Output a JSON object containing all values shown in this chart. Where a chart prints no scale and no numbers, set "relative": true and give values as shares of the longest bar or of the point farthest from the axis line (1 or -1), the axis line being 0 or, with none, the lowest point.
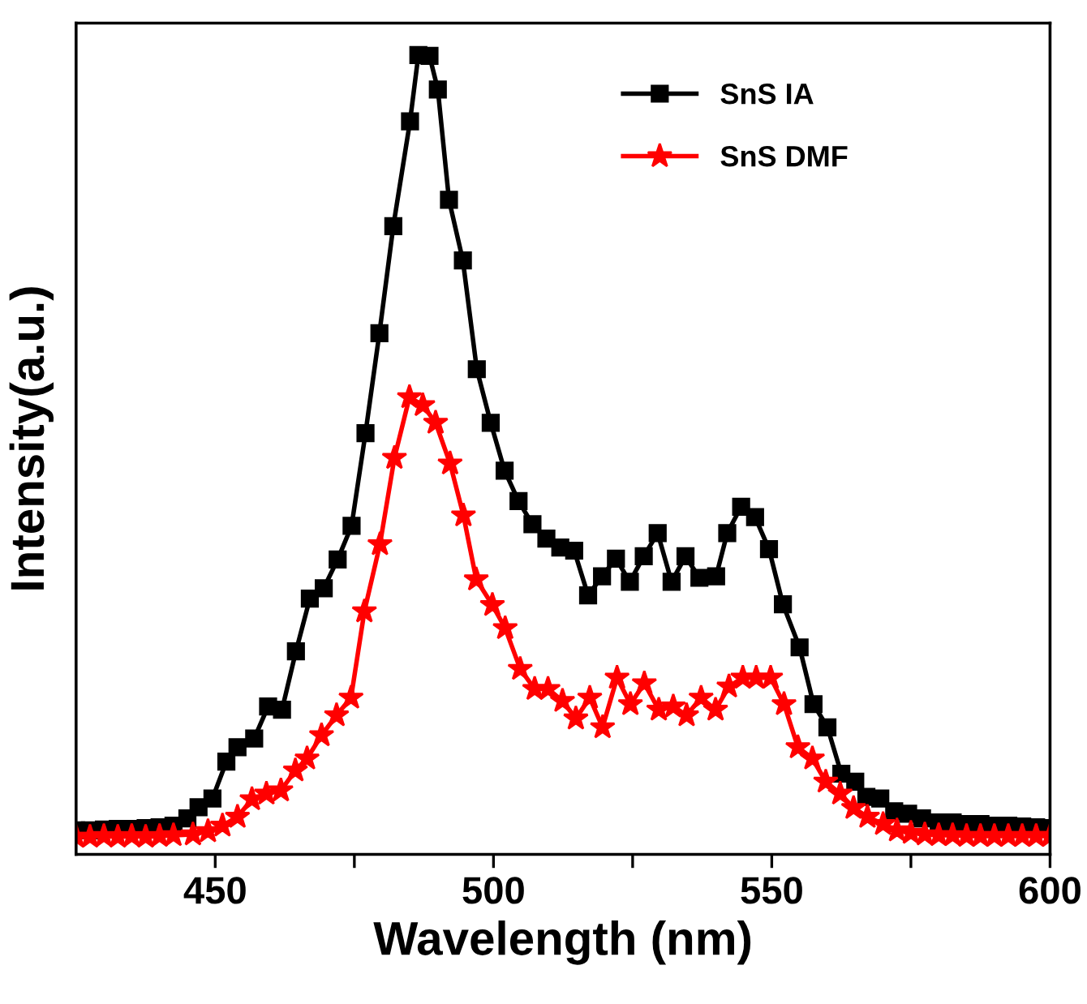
{
  "chart_data": {
    "type": "line",
    "xlabel": "Wavelength (nm)",
    "ylabel": "Intensity(a.u.)",
    "relative": true,
    "xlim": [
      425,
      600
    ],
    "xticks": [
      450,
      {
        "value": 475,
        "label": null
      },
      500,
      {
        "value": 525,
        "label": null
      },
      550,
      {
        "value": 575,
        "label": null
      },
      600
    ],
    "legend": "top right",
    "grid": false,
    "line_style": "solid",
    "tick_labels": "x",
    "series": [
      {
        "name": "SnS IA",
        "color": "#000000",
        "marker": "square",
        "x": [
          425,
          427.5,
          430,
          432.5,
          435,
          437.5,
          440,
          442.5,
          445,
          447,
          449.5,
          452,
          454,
          457,
          459.5,
          462,
          464.5,
          467,
          469.5,
          472,
          474.5,
          477,
          479.5,
          482,
          485,
          486.5,
          488.5,
          490,
          492,
          494.5,
          497,
          499.5,
          502,
          504.5,
          507,
          509.5,
          512,
          514.5,
          517,
          519.5,
          522,
          524.5,
          527,
          529.5,
          532,
          534.5,
          537,
          540,
          542,
          544.5,
          547,
          549.5,
          552,
          555,
          557.5,
          560,
          562.5,
          565,
          567,
          569.5,
          572,
          574.5,
          577,
          580,
          582.5,
          585,
          587.5,
          590,
          592.5,
          595,
          597.5,
          600
        ],
        "values": [
          0.03,
          0.03,
          0.031,
          0.032,
          0.032,
          0.033,
          0.034,
          0.036,
          0.045,
          0.059,
          0.07,
          0.116,
          0.134,
          0.145,
          0.185,
          0.181,
          0.254,
          0.32,
          0.333,
          0.369,
          0.411,
          0.527,
          0.652,
          0.786,
          0.917,
          1.0,
          0.999,
          0.957,
          0.819,
          0.743,
          0.607,
          0.54,
          0.48,
          0.442,
          0.413,
          0.395,
          0.384,
          0.38,
          0.324,
          0.348,
          0.37,
          0.341,
          0.373,
          0.402,
          0.341,
          0.373,
          0.346,
          0.348,
          0.402,
          0.435,
          0.422,
          0.382,
          0.313,
          0.259,
          0.188,
          0.159,
          0.101,
          0.091,
          0.072,
          0.07,
          0.054,
          0.051,
          0.045,
          0.04,
          0.04,
          0.038,
          0.038,
          0.036,
          0.036,
          0.035,
          0.034,
          0.033
        ]
      },
      {
        "name": "SnS DMF",
        "color": "#ff0000",
        "marker": "star",
        "x": [
          425,
          427.5,
          430,
          432.5,
          435,
          437.5,
          440,
          442.5,
          446,
          448.7,
          451.3,
          454,
          456.6,
          459.2,
          461.8,
          464.4,
          466.5,
          469.1,
          471.8,
          474.4,
          476.8,
          479.6,
          482.2,
          484.9,
          487.3,
          489.6,
          492.2,
          494.6,
          496.9,
          499.8,
          502.1,
          504.8,
          507.4,
          509.8,
          512.4,
          514.8,
          517.3,
          519.6,
          522.2,
          524.6,
          527.1,
          529.7,
          532.3,
          534.7,
          537.3,
          539.9,
          542.3,
          544.8,
          547.2,
          549.8,
          552.2,
          554.7,
          557.3,
          559.7,
          562.3,
          564.7,
          567.2,
          570,
          572.5,
          575,
          577.5,
          580,
          582.5,
          585,
          587.5,
          590,
          592.5,
          595,
          597.5,
          600
        ],
        "values": [
          0.022,
          0.022,
          0.023,
          0.022,
          0.023,
          0.022,
          0.023,
          0.024,
          0.025,
          0.029,
          0.036,
          0.047,
          0.069,
          0.076,
          0.08,
          0.105,
          0.12,
          0.149,
          0.174,
          0.196,
          0.304,
          0.388,
          0.496,
          0.572,
          0.562,
          0.54,
          0.489,
          0.424,
          0.344,
          0.312,
          0.283,
          0.232,
          0.207,
          0.207,
          0.192,
          0.17,
          0.196,
          0.159,
          0.221,
          0.188,
          0.214,
          0.181,
          0.185,
          0.174,
          0.196,
          0.181,
          0.21,
          0.221,
          0.221,
          0.221,
          0.188,
          0.134,
          0.12,
          0.091,
          0.076,
          0.058,
          0.047,
          0.038,
          0.03,
          0.027,
          0.025,
          0.024,
          0.024,
          0.023,
          0.023,
          0.023,
          0.023,
          0.023,
          0.023,
          0.023
        ]
      }
    ]
  }
}
